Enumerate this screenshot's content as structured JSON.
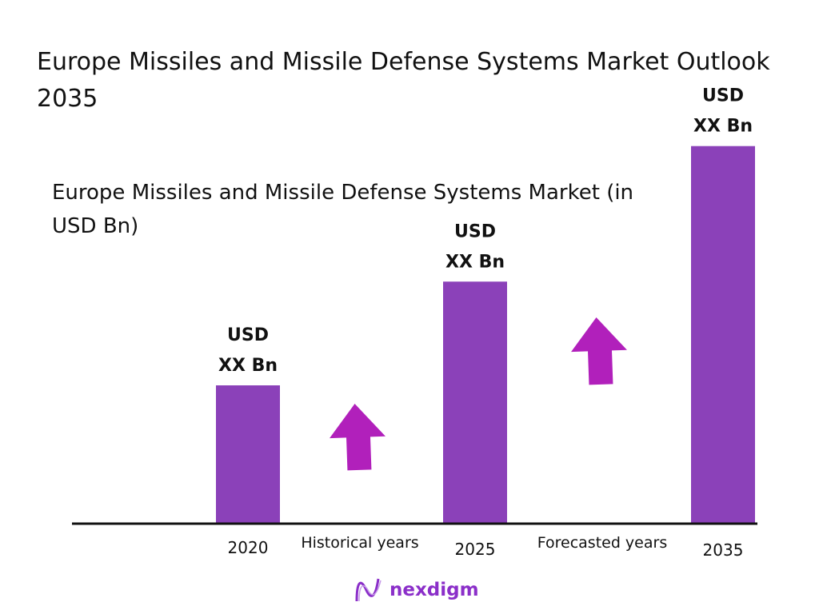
{
  "title": "Europe Missiles and Missile Defense Systems Market Outlook 2035",
  "chart_data": {
    "type": "bar",
    "title": "Europe Missiles and Missile Defense Systems Market Outlook 2035",
    "subtitle": "Europe Missiles and Missile Defense Systems Market (in USD Bn)",
    "categories": [
      "2020",
      "2025",
      "2035"
    ],
    "relative_values": [
      1.0,
      1.75,
      2.73
    ],
    "data_labels": [
      [
        "USD",
        "XX Bn"
      ],
      [
        "USD",
        "XX Bn"
      ],
      [
        "USD",
        "XX Bn"
      ]
    ],
    "period_labels": [
      "Historical years",
      "Forecasted years"
    ],
    "bar_color": "#8b41b9",
    "arrow_color": "#b120bb",
    "grid": false
  },
  "logo": {
    "text": "nexdigm"
  }
}
